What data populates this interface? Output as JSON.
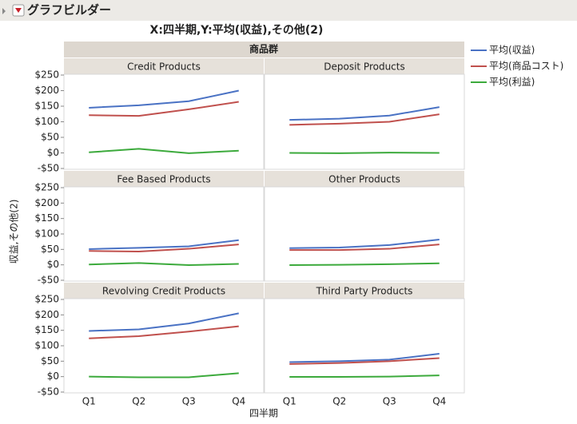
{
  "window_title": "グラフビルダー",
  "chart_data": {
    "type": "line",
    "title": "X:四半期,Y:平均(収益),その他(2)",
    "facet_label": "商品群",
    "x_label": "四半期",
    "y_label": "収益,その他(2)",
    "categories": [
      "Q1",
      "Q2",
      "Q3",
      "Q4"
    ],
    "ylim": [
      -50,
      250
    ],
    "yticks": [
      {
        "value": -50,
        "label": "-$50"
      },
      {
        "value": 0,
        "label": "$0"
      },
      {
        "value": 50,
        "label": "$50"
      },
      {
        "value": 100,
        "label": "$100"
      },
      {
        "value": 150,
        "label": "$150"
      },
      {
        "value": 200,
        "label": "$200"
      },
      {
        "value": 250,
        "label": "$250"
      }
    ],
    "series": [
      {
        "name": "平均(収益)",
        "color": "#4a72c4"
      },
      {
        "name": "平均(商品コスト)",
        "color": "#c0504d"
      },
      {
        "name": "平均(利益)",
        "color": "#3caa3c"
      }
    ],
    "panels": [
      {
        "title": "Credit Products",
        "series": [
          {
            "values": [
              145,
              153,
              166,
              200
            ]
          },
          {
            "values": [
              121,
              119,
              140,
              164
            ]
          },
          {
            "values": [
              2,
              13,
              -1,
              7
            ]
          }
        ]
      },
      {
        "title": "Deposit Products",
        "series": [
          {
            "values": [
              106,
              110,
              120,
              147
            ]
          },
          {
            "values": [
              90,
              94,
              100,
              124
            ]
          },
          {
            "values": [
              0,
              -1,
              1,
              0
            ]
          }
        ]
      },
      {
        "title": "Fee Based Products",
        "series": [
          {
            "values": [
              51,
              55,
              60,
              80
            ]
          },
          {
            "values": [
              45,
              43,
              52,
              66
            ]
          },
          {
            "values": [
              1,
              6,
              -1,
              3
            ]
          }
        ]
      },
      {
        "title": "Other Products",
        "series": [
          {
            "values": [
              54,
              56,
              64,
              82
            ]
          },
          {
            "values": [
              48,
              48,
              52,
              66
            ]
          },
          {
            "values": [
              -1,
              0,
              2,
              5
            ]
          }
        ]
      },
      {
        "title": "Revolving Credit Products",
        "series": [
          {
            "values": [
              148,
              153,
              172,
              205
            ]
          },
          {
            "values": [
              124,
              131,
              146,
              163
            ]
          },
          {
            "values": [
              0,
              -2,
              -2,
              11
            ]
          }
        ]
      },
      {
        "title": "Third Party Products",
        "series": [
          {
            "values": [
              47,
              50,
              55,
              74
            ]
          },
          {
            "values": [
              41,
              44,
              50,
              60
            ]
          },
          {
            "values": [
              -1,
              -1,
              0,
              4
            ]
          }
        ]
      }
    ]
  }
}
